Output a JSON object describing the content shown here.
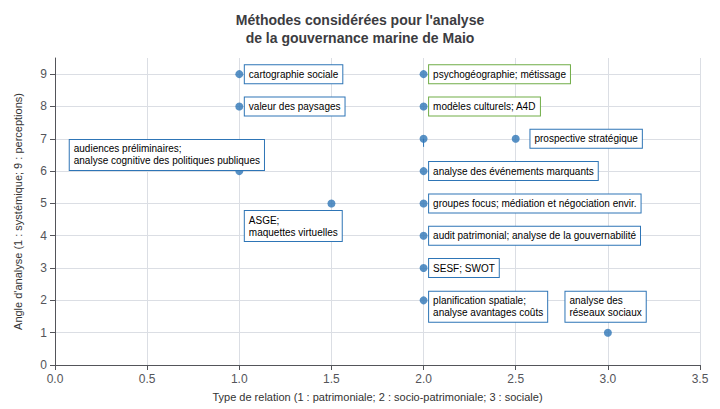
{
  "chart_data": {
    "type": "scatter",
    "title": "Méthodes considérées pour l'analyse\nde la gouvernance marine de Maio",
    "xlabel": "Type de relation (1 : patrimoniale; 2 : socio-patrimoniale; 3 : sociale)",
    "ylabel": "Angle d'analyse (1 : systémique; 9 : perceptions)",
    "xlim": [
      0,
      3.5
    ],
    "ylim": [
      0,
      9.5
    ],
    "xticks": [
      {
        "value": 0,
        "label": "0.0"
      },
      {
        "value": 0.5,
        "label": "0.5"
      },
      {
        "value": 1.0,
        "label": "1.0"
      },
      {
        "value": 1.5,
        "label": "1.5"
      },
      {
        "value": 2.0,
        "label": "2.0"
      },
      {
        "value": 2.5,
        "label": "2.5"
      },
      {
        "value": 3.0,
        "label": "3.0"
      },
      {
        "value": 3.5,
        "label": "3.5"
      }
    ],
    "yticks": [
      0,
      1,
      2,
      3,
      4,
      5,
      6,
      7,
      8,
      9
    ],
    "grid": true,
    "series": [
      {
        "type": "scatter",
        "color": "#2E75B6",
        "x": [
          1.0,
          1.0,
          2.0,
          1.0,
          2.0,
          2.0,
          2.5,
          2.0,
          1.5,
          2.0,
          2.0,
          2.0,
          2.0,
          3.0
        ],
        "values": [
          9,
          8,
          7,
          6,
          9,
          8,
          7,
          6,
          5,
          5,
          4,
          3,
          2,
          1
        ]
      },
      {
        "type": "line",
        "color": "#2E75B6",
        "x": [
          2.0,
          2.0
        ],
        "values": [
          6.75,
          7.0
        ]
      }
    ],
    "annotations": [
      {
        "x": 1.03,
        "y": 9.0,
        "text": "cartographie sociale",
        "color": "#2E75B6"
      },
      {
        "x": 1.03,
        "y": 8.0,
        "text": "valeur des paysages",
        "color": "#2E75B6"
      },
      {
        "x": 0.08,
        "y": 6.5,
        "text": "audiences préliminaires;\nanalyse cognitive des politiques publiques",
        "color": "#2E75B6"
      },
      {
        "x": 1.03,
        "y": 4.3,
        "text": "ASGE;\nmaquettes virtuelles",
        "color": "#2E75B6"
      },
      {
        "x": 2.03,
        "y": 6.0,
        "text": "analyse des événements marquants",
        "color": "#2E75B6"
      },
      {
        "x": 2.03,
        "y": 5.0,
        "text": "groupes focus; médiation et négociation envir.",
        "color": "#2E75B6"
      },
      {
        "x": 2.03,
        "y": 4.0,
        "text": "audit patrimonial; analyse de la gouvernabilité",
        "color": "#2E75B6"
      },
      {
        "x": 2.03,
        "y": 3.0,
        "text": "SESF; SWOT",
        "color": "#2E75B6"
      },
      {
        "x": 2.03,
        "y": 1.8,
        "text": "planification spatiale;\nanalyse avantages coûts",
        "color": "#2E75B6"
      },
      {
        "x": 2.77,
        "y": 1.8,
        "text": "analyse des\nréseaux sociaux",
        "color": "#2E75B6"
      },
      {
        "x": 2.58,
        "y": 7.0,
        "text": "prospective stratégique",
        "color": "#2E75B6"
      },
      {
        "x": 2.03,
        "y": 9.0,
        "text": "psychogéographie; métissage",
        "color": "#70AD47"
      },
      {
        "x": 2.03,
        "y": 8.0,
        "text": "modèles culturels; A4D",
        "color": "#70AD47"
      }
    ]
  }
}
